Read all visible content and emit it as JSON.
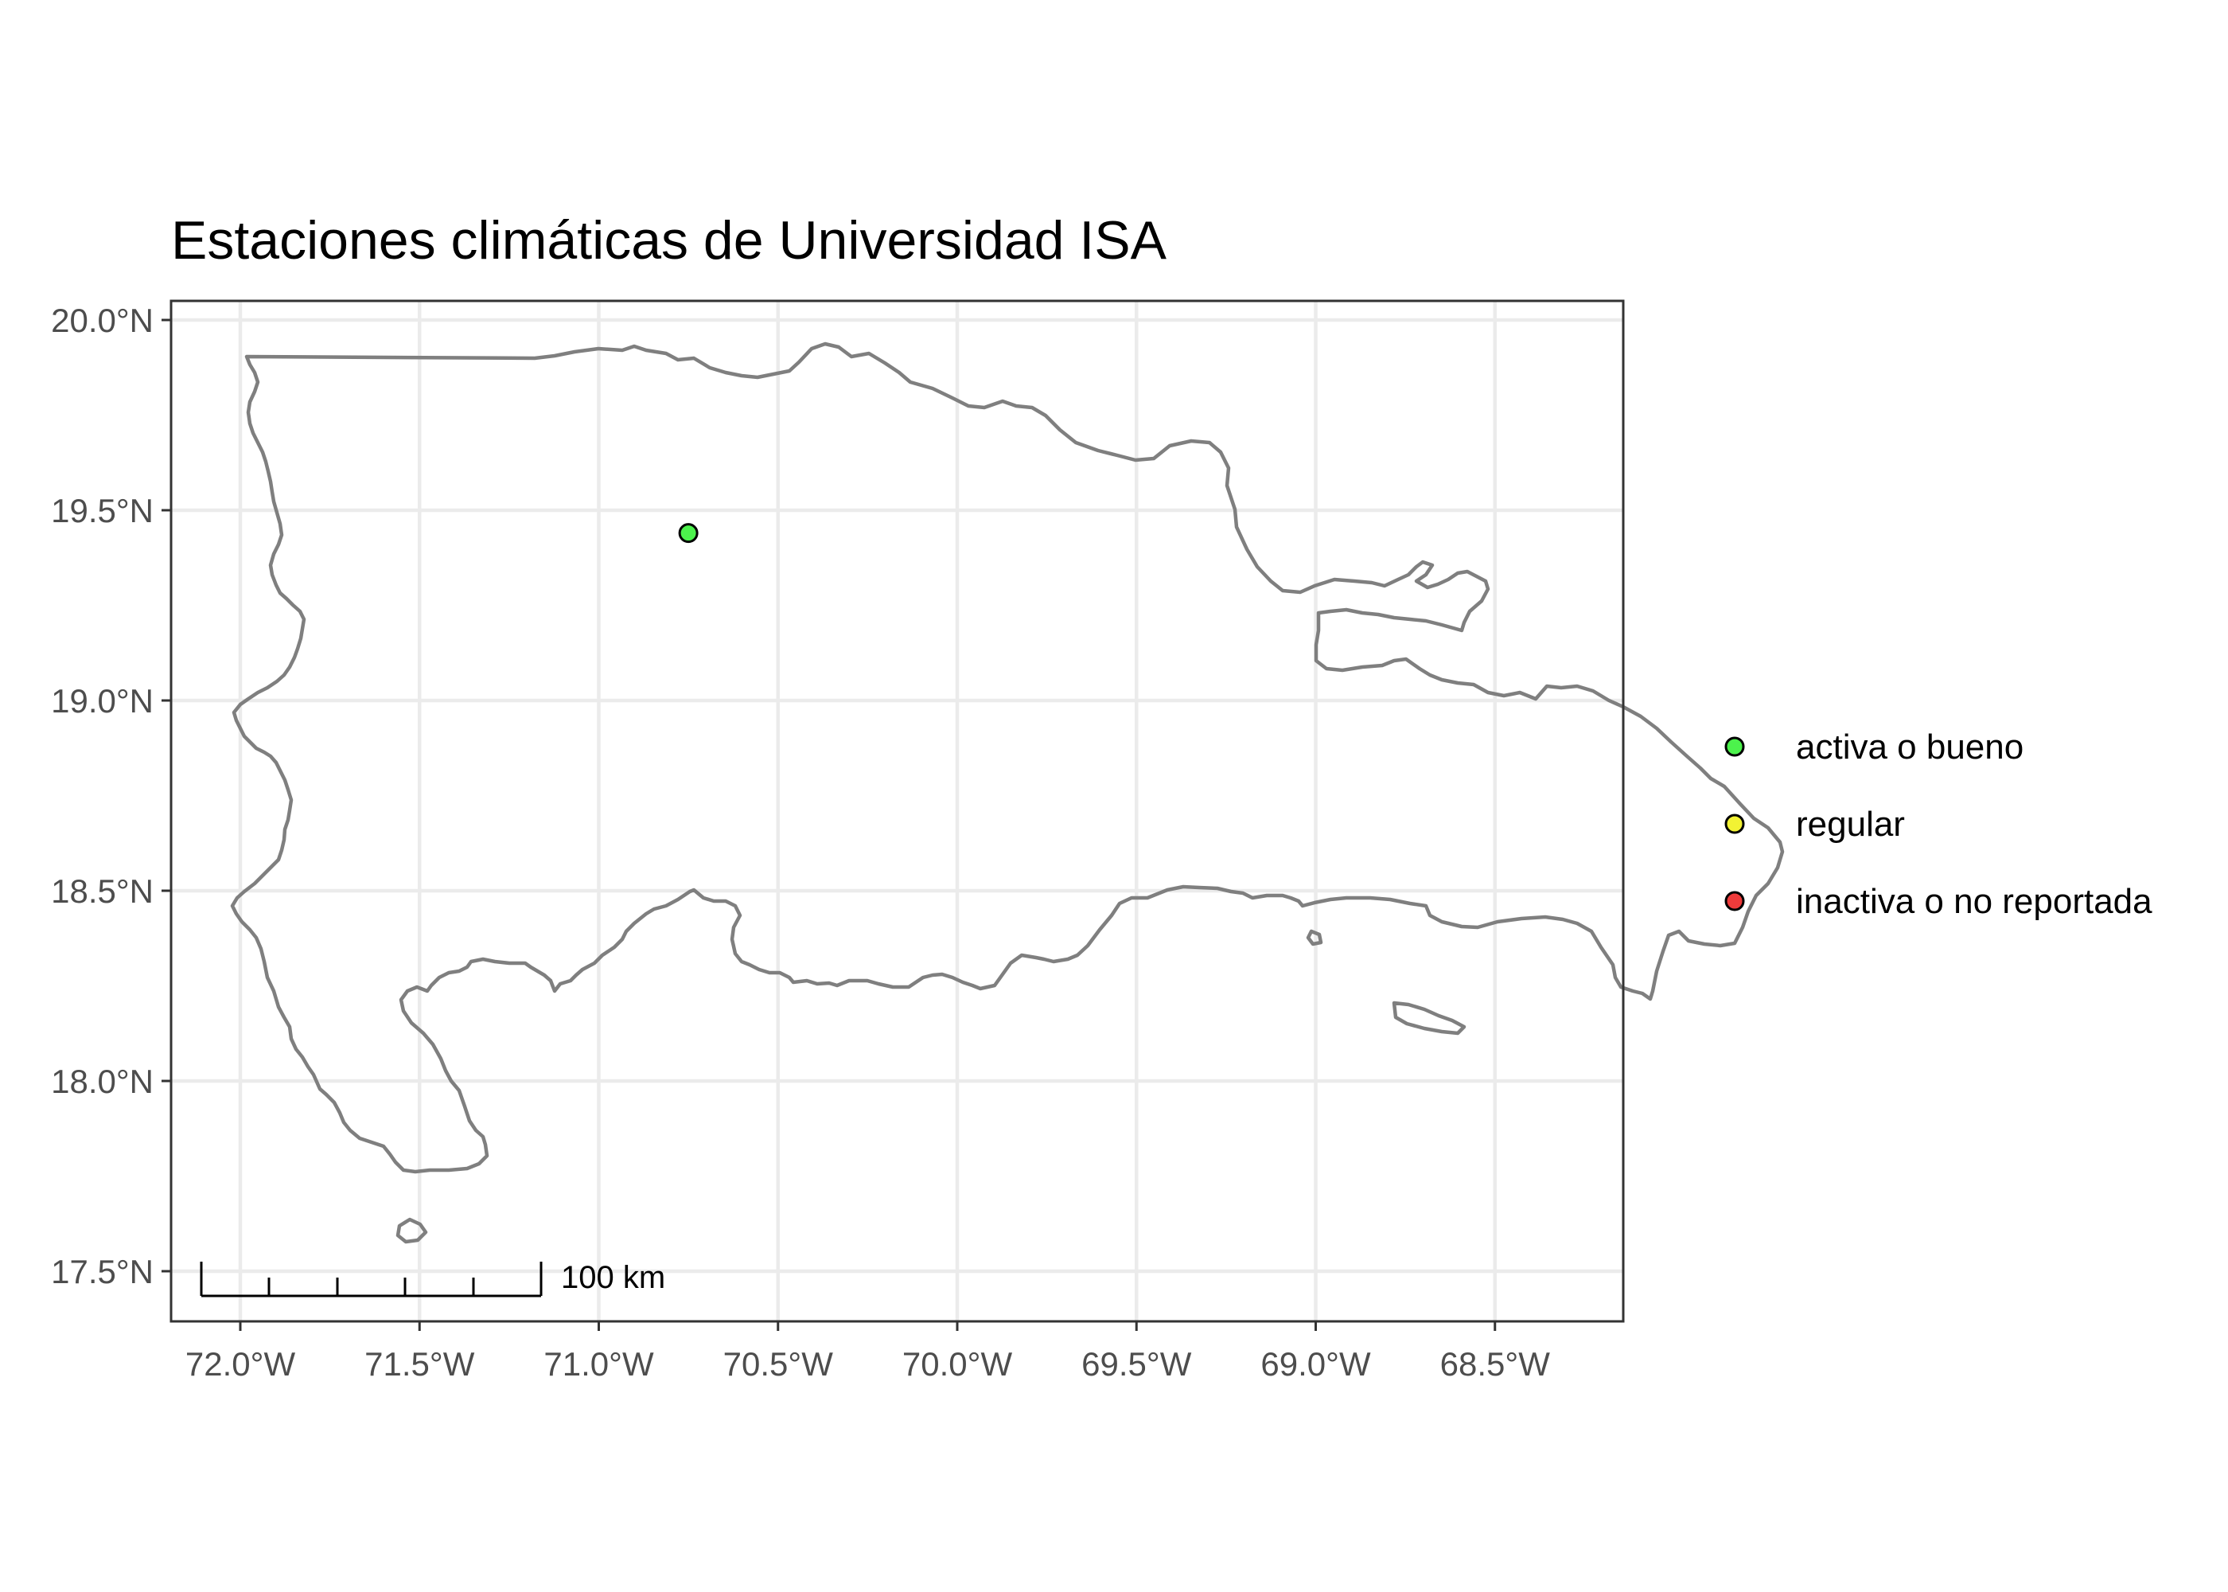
{
  "title": "Estaciones climáticas de Universidad ISA",
  "y_ticks": [
    {
      "value": 20.0,
      "label": "20.0°N"
    },
    {
      "value": 19.5,
      "label": "19.5°N"
    },
    {
      "value": 19.0,
      "label": "19.0°N"
    },
    {
      "value": 18.5,
      "label": "18.5°N"
    },
    {
      "value": 18.0,
      "label": "18.0°N"
    },
    {
      "value": 17.5,
      "label": "17.5°N"
    }
  ],
  "x_ticks": [
    {
      "value": -72.0,
      "label": "72.0°W"
    },
    {
      "value": -71.5,
      "label": "71.5°W"
    },
    {
      "value": -71.0,
      "label": "71.0°W"
    },
    {
      "value": -70.5,
      "label": "70.5°W"
    },
    {
      "value": -70.0,
      "label": "70.0°W"
    },
    {
      "value": -69.5,
      "label": "69.5°W"
    },
    {
      "value": -69.0,
      "label": "69.0°W"
    },
    {
      "value": -68.5,
      "label": "68.5°W"
    }
  ],
  "legend": [
    {
      "label": "activa o bueno",
      "color": "#4cf24c"
    },
    {
      "label": "regular",
      "color": "#f2f233"
    },
    {
      "label": "inactiva o no reportada",
      "color": "#ef3b3b"
    }
  ],
  "stations": [
    {
      "lon": -70.75,
      "lat": 19.44,
      "status": "activa o bueno",
      "color": "#4cf24c"
    }
  ],
  "scale_bar": {
    "label": "100 km"
  },
  "colors": {
    "coastline": "#7f7f7f",
    "grid": "#ebebeb",
    "panel_border": "#333333"
  }
}
